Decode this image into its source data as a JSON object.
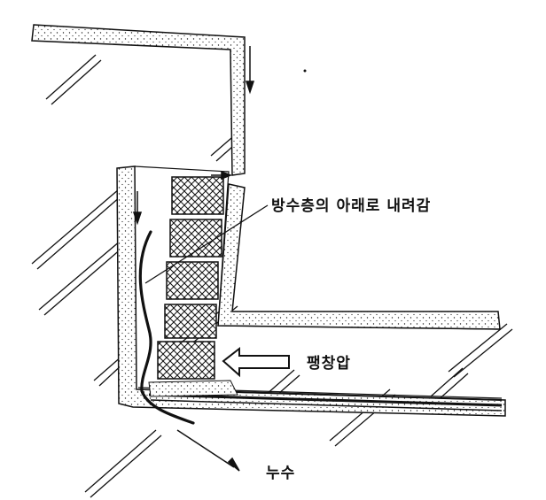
{
  "labels": {
    "water_below_layer": "방수층의 아래로 내려감",
    "expansion_pressure": "팽창압",
    "leakage": "누수"
  },
  "colors": {
    "line": "#111111",
    "background": "#ffffff"
  }
}
